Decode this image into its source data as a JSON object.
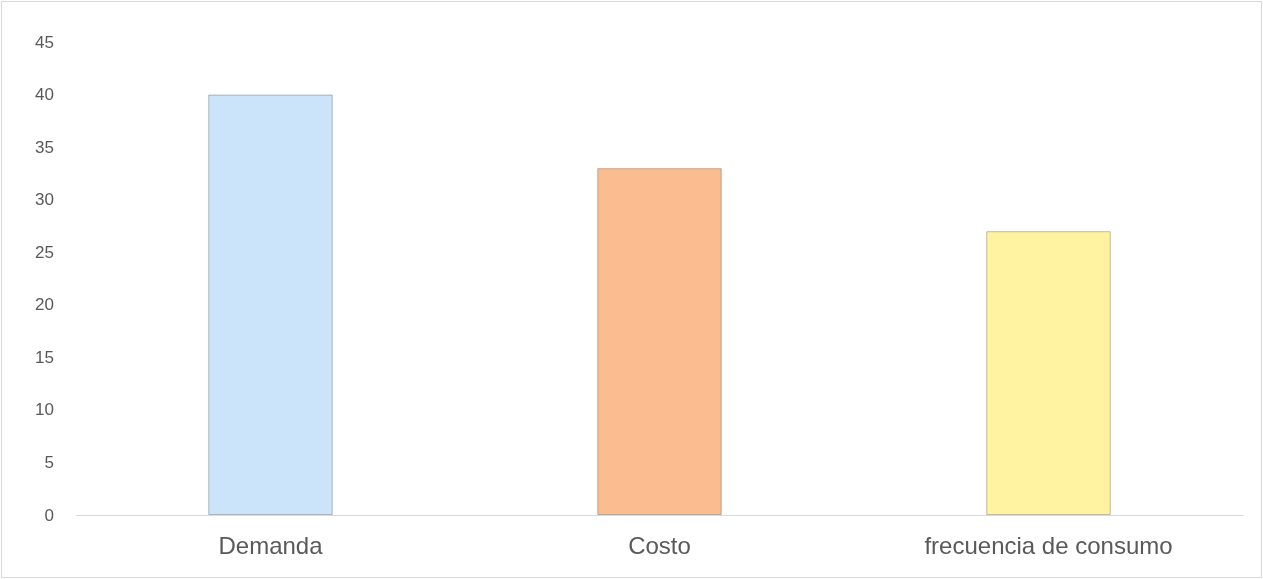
{
  "chart_data": {
    "type": "bar",
    "categories": [
      "Demanda",
      "Costo",
      "frecuencia de consumo"
    ],
    "values": [
      40,
      33,
      27
    ],
    "colors": [
      "#cce4f9",
      "#fbbd8f",
      "#fff3a1"
    ],
    "ylim": [
      0,
      45
    ],
    "yticks": [
      0,
      5,
      10,
      15,
      20,
      25,
      30,
      35,
      40,
      45
    ]
  }
}
